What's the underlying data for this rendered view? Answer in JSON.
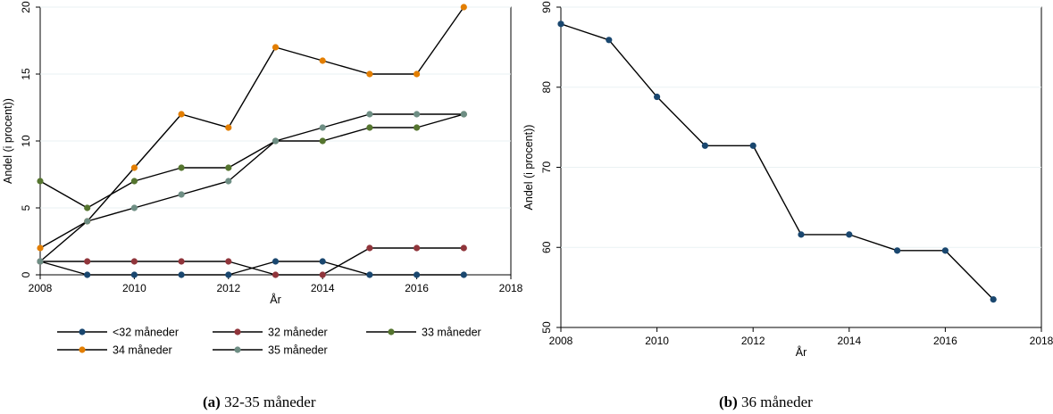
{
  "chart_data": [
    {
      "type": "line",
      "caption_tag": "(a)",
      "caption_text": "32-35 måneder",
      "xlabel": "År",
      "ylabel": "Andel (i procent))",
      "xlim": [
        2008,
        2018
      ],
      "ylim": [
        0,
        20
      ],
      "xticks": [
        2008,
        2010,
        2012,
        2014,
        2016,
        2018
      ],
      "yticks": [
        0,
        5,
        10,
        15,
        20
      ],
      "grid": true,
      "legend_position": "bottom",
      "x": [
        2008,
        2009,
        2010,
        2011,
        2012,
        2013,
        2014,
        2015,
        2016,
        2017
      ],
      "series": [
        {
          "name": "<32 måneder",
          "color": "#1a476f",
          "values": [
            1,
            0,
            0,
            0,
            0,
            1,
            1,
            0,
            0,
            0
          ]
        },
        {
          "name": "32 måneder",
          "color": "#90353b",
          "values": [
            1,
            1,
            1,
            1,
            1,
            0,
            0,
            2,
            2,
            2
          ]
        },
        {
          "name": "33 måneder",
          "color": "#55752f",
          "values": [
            7,
            5,
            7,
            8,
            8,
            10,
            10,
            11,
            11,
            12
          ]
        },
        {
          "name": "34 måneder",
          "color": "#e37e00",
          "values": [
            2,
            4,
            8,
            12,
            11,
            17,
            16,
            15,
            15,
            20
          ]
        },
        {
          "name": "35 måneder",
          "color": "#6e8e84",
          "values": [
            1,
            4,
            5,
            6,
            7,
            10,
            11,
            12,
            12,
            12
          ]
        }
      ]
    },
    {
      "type": "line",
      "caption_tag": "(b)",
      "caption_text": "36 måneder",
      "xlabel": "År",
      "ylabel": "Andel (i procent))",
      "xlim": [
        2008,
        2018
      ],
      "ylim": [
        50,
        90
      ],
      "xticks": [
        2008,
        2010,
        2012,
        2014,
        2016,
        2018
      ],
      "yticks": [
        50,
        60,
        70,
        80,
        90
      ],
      "grid": true,
      "x": [
        2008,
        2009,
        2010,
        2011,
        2012,
        2013,
        2014,
        2015,
        2016,
        2017
      ],
      "series": [
        {
          "color": "#1a476f",
          "values": [
            87.9,
            85.9,
            78.8,
            72.7,
            72.7,
            61.6,
            61.6,
            59.6,
            59.6,
            53.5
          ]
        }
      ]
    }
  ]
}
